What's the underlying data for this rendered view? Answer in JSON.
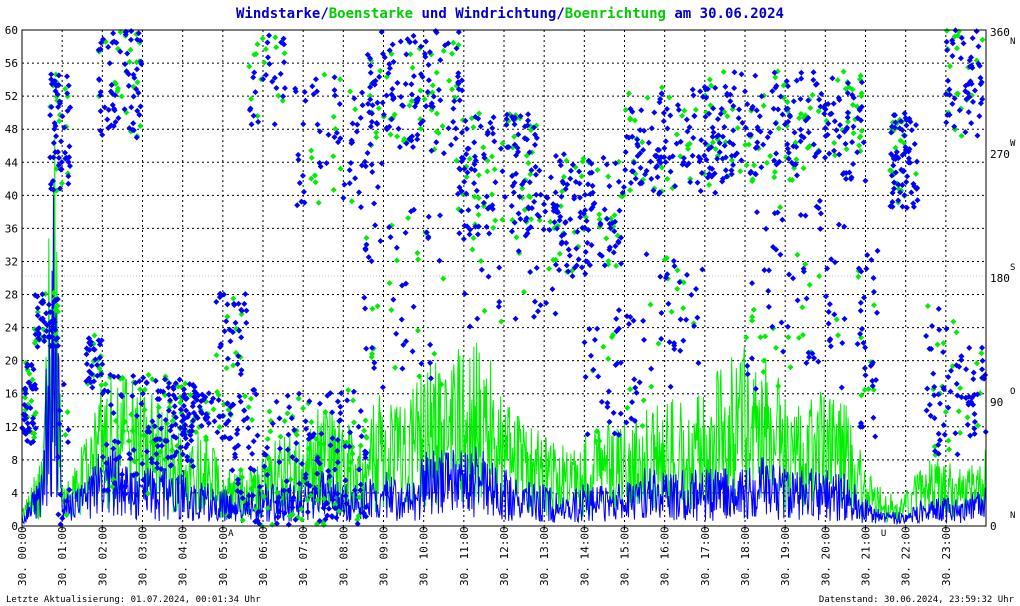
{
  "chart_data": {
    "type": "line",
    "title_parts": [
      {
        "text": "Windstarke",
        "color": "#0000cc"
      },
      {
        "text": "/",
        "color": "#0000cc"
      },
      {
        "text": "Boenstarke",
        "color": "#00cc00"
      },
      {
        "text": " und ",
        "color": "#0000cc"
      },
      {
        "text": "Windrichtung",
        "color": "#0000cc"
      },
      {
        "text": "/",
        "color": "#0000cc"
      },
      {
        "text": "Boenrichtung",
        "color": "#00cc00"
      },
      {
        "text": " am 30.06.2024",
        "color": "#0000cc"
      }
    ],
    "colors": {
      "wind": "#0000ff",
      "gust": "#00ee00",
      "grid": "#000000",
      "marker": "#ff0000",
      "cursor": "#888888"
    },
    "ylim_left": [
      0,
      60
    ],
    "yticks_left": [
      "0",
      "4",
      "8",
      "12",
      "16",
      "20",
      "24",
      "28",
      "32",
      "36",
      "40",
      "44",
      "48",
      "52",
      "56",
      "60"
    ],
    "ylim_right": [
      0,
      360
    ],
    "yticks_right": [
      {
        "value": 0,
        "label": "0",
        "dir": "N"
      },
      {
        "value": 90,
        "label": "90",
        "dir": "O"
      },
      {
        "value": 180,
        "label": "180",
        "dir": "S"
      },
      {
        "value": 270,
        "label": "270",
        "dir": "W"
      },
      {
        "value": 360,
        "label": "360",
        "dir": "N"
      }
    ],
    "xlim_hours": [
      0,
      24
    ],
    "xticks": [
      "30. 00:00",
      "30. 01:00",
      "30. 02:00",
      "30. 03:00",
      "30. 04:00",
      "30. 05:00",
      "30. 06:00",
      "30. 07:00",
      "30. 08:00",
      "30. 09:00",
      "30. 10:00",
      "30. 11:00",
      "30. 12:00",
      "30. 13:00",
      "30. 14:00",
      "30. 15:00",
      "30. 16:00",
      "30. 17:00",
      "30. 18:00",
      "30. 19:00",
      "30. 20:00",
      "30. 21:00",
      "30. 22:00",
      "30. 23:00"
    ],
    "markers": [
      {
        "label": "A",
        "hour": 5.2
      },
      {
        "label": "U",
        "hour": 21.45
      }
    ],
    "wind_envelope": {
      "hours": [
        0,
        0.5,
        0.8,
        1.0,
        1.5,
        2.0,
        2.5,
        3.0,
        3.5,
        4.0,
        4.5,
        5.0,
        5.5,
        6.0,
        6.5,
        7.0,
        7.5,
        8.0,
        8.5,
        9.0,
        9.5,
        10.0,
        10.5,
        11.0,
        11.5,
        12.0,
        12.5,
        13.0,
        13.5,
        14.0,
        14.5,
        15.0,
        15.5,
        16.0,
        16.5,
        17.0,
        17.5,
        18.0,
        18.5,
        19.0,
        19.5,
        20.0,
        20.5,
        21.0,
        21.5,
        22.0,
        22.5,
        23.0,
        23.5,
        24.0
      ],
      "values": [
        1,
        4,
        26,
        2,
        3,
        6,
        5,
        4,
        4,
        4,
        3,
        3,
        2,
        3,
        3,
        3,
        4,
        3,
        3,
        4,
        3,
        5,
        6,
        5,
        6,
        4,
        3,
        3,
        2,
        3,
        3,
        3,
        4,
        4,
        4,
        4,
        4,
        4,
        5,
        4,
        4,
        4,
        4,
        2,
        1,
        1,
        2,
        2,
        2,
        3
      ]
    },
    "gust_envelope": {
      "hours": [
        0,
        0.5,
        0.8,
        1.0,
        1.5,
        2.0,
        2.5,
        3.0,
        3.5,
        4.0,
        4.5,
        5.0,
        5.5,
        6.0,
        6.5,
        7.0,
        7.5,
        8.0,
        8.5,
        9.0,
        9.5,
        10.0,
        10.5,
        11.0,
        11.5,
        12.0,
        12.5,
        13.0,
        13.5,
        14.0,
        14.5,
        15.0,
        15.5,
        16.0,
        16.5,
        17.0,
        17.5,
        18.0,
        18.5,
        19.0,
        19.5,
        20.0,
        20.5,
        21.0,
        21.5,
        22.0,
        22.5,
        23.0,
        23.5,
        24.0
      ],
      "values": [
        2,
        6,
        40,
        4,
        7,
        14,
        13,
        12,
        11,
        9,
        8,
        6,
        5,
        7,
        8,
        8,
        11,
        9,
        9,
        12,
        10,
        14,
        16,
        15,
        17,
        11,
        9,
        8,
        7,
        8,
        9,
        9,
        10,
        12,
        11,
        13,
        14,
        16,
        15,
        12,
        11,
        12,
        11,
        5,
        3,
        3,
        6,
        6,
        5,
        7
      ]
    },
    "direction_clusters": [
      {
        "h0": 0.0,
        "h1": 0.35,
        "d0": 60,
        "d1": 120,
        "n": 60
      },
      {
        "h0": 0.3,
        "h1": 0.9,
        "d0": 130,
        "d1": 170,
        "n": 70
      },
      {
        "h0": 0.7,
        "h1": 1.2,
        "d0": 240,
        "d1": 330,
        "n": 70
      },
      {
        "h0": 0.9,
        "h1": 1.2,
        "d0": 0,
        "d1": 120,
        "n": 15
      },
      {
        "h0": 1.6,
        "h1": 2.0,
        "d0": 100,
        "d1": 140,
        "n": 40
      },
      {
        "h0": 1.9,
        "h1": 3.0,
        "d0": 280,
        "d1": 360,
        "n": 90
      },
      {
        "h0": 2.0,
        "h1": 3.2,
        "d0": 20,
        "d1": 110,
        "n": 70
      },
      {
        "h0": 3.2,
        "h1": 4.3,
        "d0": 40,
        "d1": 110,
        "n": 110
      },
      {
        "h0": 4.0,
        "h1": 5.2,
        "d0": 60,
        "d1": 100,
        "n": 70
      },
      {
        "h0": 4.8,
        "h1": 5.6,
        "d0": 110,
        "d1": 170,
        "n": 40
      },
      {
        "h0": 5.0,
        "h1": 8.6,
        "d0": 0,
        "d1": 100,
        "n": 230
      },
      {
        "h0": 5.6,
        "h1": 6.6,
        "d0": 290,
        "d1": 360,
        "n": 40
      },
      {
        "h0": 6.8,
        "h1": 9.0,
        "d0": 230,
        "d1": 330,
        "n": 80
      },
      {
        "h0": 8.6,
        "h1": 11.0,
        "d0": 270,
        "d1": 360,
        "n": 160
      },
      {
        "h0": 8.5,
        "h1": 10.5,
        "d0": 100,
        "d1": 230,
        "n": 60
      },
      {
        "h0": 10.8,
        "h1": 12.9,
        "d0": 210,
        "d1": 300,
        "n": 150
      },
      {
        "h0": 11.0,
        "h1": 13.5,
        "d0": 140,
        "d1": 260,
        "n": 60
      },
      {
        "h0": 13.0,
        "h1": 15.0,
        "d0": 180,
        "d1": 270,
        "n": 150
      },
      {
        "h0": 14.0,
        "h1": 15.5,
        "d0": 60,
        "d1": 160,
        "n": 50
      },
      {
        "h0": 15.0,
        "h1": 17.5,
        "d0": 240,
        "d1": 320,
        "n": 150
      },
      {
        "h0": 15.5,
        "h1": 17.0,
        "d0": 100,
        "d1": 200,
        "n": 40
      },
      {
        "h0": 17.0,
        "h1": 21.0,
        "d0": 250,
        "d1": 330,
        "n": 260
      },
      {
        "h0": 18.0,
        "h1": 20.5,
        "d0": 90,
        "d1": 240,
        "n": 80
      },
      {
        "h0": 20.8,
        "h1": 21.3,
        "d0": 60,
        "d1": 200,
        "n": 40
      },
      {
        "h0": 21.6,
        "h1": 22.3,
        "d0": 230,
        "d1": 300,
        "n": 90
      },
      {
        "h0": 22.5,
        "h1": 23.3,
        "d0": 50,
        "d1": 160,
        "n": 50
      },
      {
        "h0": 23.0,
        "h1": 24.0,
        "d0": 280,
        "d1": 360,
        "n": 70
      },
      {
        "h0": 23.3,
        "h1": 24.0,
        "d0": 60,
        "d1": 130,
        "n": 40
      }
    ],
    "gust_direction_share": 0.28
  },
  "footer": {
    "left": "Letzte Aktualisierung: 01.07.2024, 00:01:34 Uhr",
    "right": "Datenstand: 30.06.2024, 23:59:32 Uhr"
  }
}
